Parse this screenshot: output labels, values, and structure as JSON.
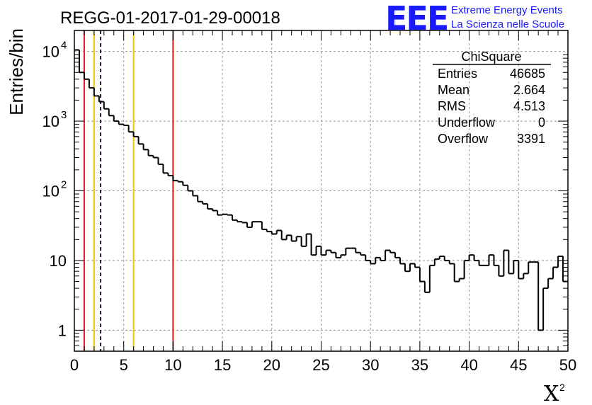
{
  "chart_data": {
    "type": "histogram",
    "title": "REGG-01-2017-01-29-00018",
    "xlabel": "X",
    "xlabel_superscript": "2",
    "ylabel": "Entries/bin",
    "xlim": [
      0,
      50
    ],
    "ylim": [
      0.5,
      20000
    ],
    "yscale": "log",
    "grid": true,
    "bin_width": 0.5,
    "x_ticks": [
      "0",
      "5",
      "10",
      "15",
      "20",
      "25",
      "30",
      "35",
      "40",
      "45",
      "50"
    ],
    "y_ticks": [
      {
        "value": 1,
        "label": "1"
      },
      {
        "value": 10,
        "label": "10"
      },
      {
        "value": 100,
        "label": "10",
        "exp": "2"
      },
      {
        "value": 1000,
        "label": "10",
        "exp": "3"
      },
      {
        "value": 10000,
        "label": "10",
        "exp": "4"
      }
    ],
    "values": [
      10500,
      5000,
      4000,
      3000,
      2300,
      1900,
      1500,
      1200,
      1000,
      900,
      870,
      700,
      600,
      470,
      390,
      320,
      300,
      240,
      180,
      165,
      140,
      135,
      120,
      100,
      85,
      70,
      65,
      55,
      52,
      45,
      46,
      45,
      38,
      36,
      35,
      30,
      36,
      36,
      28,
      26,
      24,
      27,
      20,
      23,
      19,
      22,
      16,
      24,
      12,
      16,
      12,
      14,
      13,
      11,
      12,
      15,
      15,
      13,
      12,
      10,
      9,
      11,
      10,
      14,
      13,
      11,
      9,
      7,
      9,
      8,
      5,
      3.5,
      8.5,
      10.5,
      11.5,
      10,
      9,
      5,
      5.5,
      10,
      12,
      10,
      8.5,
      8.5,
      12,
      8.5,
      6,
      14,
      6.5,
      10,
      5.5,
      6.5,
      9.5,
      9.5,
      1,
      4,
      5.5,
      8,
      11.5,
      5
    ],
    "reference_lines": [
      {
        "x": 1,
        "color": "#e8141c",
        "style": "solid"
      },
      {
        "x": 2,
        "color": "#f6c400",
        "style": "solid"
      },
      {
        "x": 2.664,
        "color": "#000000",
        "style": "dashed"
      },
      {
        "x": 6,
        "color": "#f6c400",
        "style": "solid"
      },
      {
        "x": 10,
        "color": "#e8141c",
        "style": "solid"
      }
    ],
    "stats_box": {
      "title": "ChiSquare",
      "rows": [
        {
          "label": "Entries",
          "value": "46685"
        },
        {
          "label": "Mean",
          "value": "2.664"
        },
        {
          "label": "RMS",
          "value": "4.513"
        },
        {
          "label": "Underflow",
          "value": "0"
        },
        {
          "label": "Overflow",
          "value": "3391"
        }
      ]
    }
  },
  "logo": {
    "mark": "EEE",
    "line1": "Extreme Energy Events",
    "line2": "La Scienza nelle Scuole",
    "color": "#1a1aff"
  }
}
